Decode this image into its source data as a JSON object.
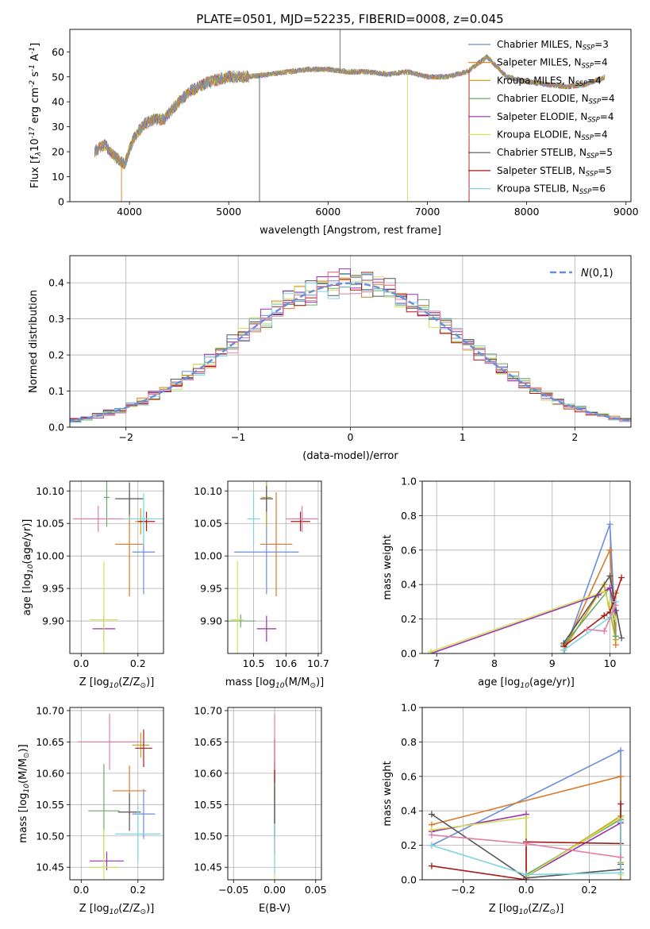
{
  "figure_title": "PLATE=0501, MJD=52235, FIBERID=0008, z=0.045",
  "colors": {
    "axis": "#000000",
    "grid": "#b0b0b0",
    "series": [
      "#6a8fd8",
      "#d97a2a",
      "#c9a31a",
      "#6aa96a",
      "#9b30b0",
      "#d2e35a",
      "#555555",
      "#aa1a1a",
      "#7fd4df",
      "#e27fa8"
    ],
    "normal_curve": "#6a8fd8"
  },
  "chart_data": [
    {
      "id": "spectrum",
      "type": "line",
      "title": "PLATE=0501, MJD=52235, FIBERID=0008, z=0.045",
      "xlabel": "wavelength [Angstrom, rest frame]",
      "ylabel": "Flux [f$_\\lambda$10$^{-17}$ erg cm$^{-2}$ s$^{-1}$ A$^{-1}$]",
      "xlim": [
        3400,
        9050
      ],
      "ylim": [
        0,
        69
      ],
      "xticks": [
        4000,
        5000,
        6000,
        7000,
        8000,
        9000
      ],
      "yticks": [
        0,
        10,
        20,
        30,
        40,
        50,
        60
      ],
      "grid": false,
      "legend_position": "upper-right",
      "continuum_x": [
        3650,
        3750,
        3850,
        3950,
        4050,
        4150,
        4250,
        4350,
        4450,
        4600,
        4800,
        5000,
        5200,
        5400,
        5600,
        5800,
        6000,
        6200,
        6400,
        6600,
        6800,
        7000,
        7200,
        7400,
        7500,
        7600,
        7700,
        7800,
        8000,
        8200,
        8400,
        8600,
        8800
      ],
      "continuum_y": [
        20,
        23,
        18,
        15,
        26,
        31,
        33,
        33,
        38,
        44,
        48,
        50,
        50,
        51,
        52,
        53,
        53,
        52,
        52,
        51,
        52,
        50,
        50,
        52,
        55,
        58,
        54,
        50,
        48,
        47,
        46,
        47,
        50
      ],
      "series": [
        {
          "label": "Chabrier MILES, N$_{SSP}$=3"
        },
        {
          "label": "Salpeter MILES, N$_{SSP}$=4"
        },
        {
          "label": "Kroupa MILES, N$_{SSP}$=4"
        },
        {
          "label": "Chabrier ELODIE, N$_{SSP}$=4"
        },
        {
          "label": "Salpeter ELODIE, N$_{SSP}$=4"
        },
        {
          "label": "Kroupa ELODIE, N$_{SSP}$=4"
        },
        {
          "label": "Chabrier STELIB, N$_{SSP}$=5"
        },
        {
          "label": "Salpeter STELIB, N$_{SSP}$=5"
        },
        {
          "label": "Kroupa STELIB, N$_{SSP}$=6"
        }
      ]
    },
    {
      "id": "residuals",
      "type": "histogram",
      "xlabel": "(data-model)/error",
      "ylabel": "Normed distribution",
      "xlim": [
        -2.5,
        2.5
      ],
      "ylim": [
        0,
        0.475
      ],
      "xticks": [
        -2,
        -1,
        0,
        1,
        2
      ],
      "yticks": [
        0.0,
        0.1,
        0.2,
        0.3,
        0.4
      ],
      "grid": true,
      "legend_position": "upper-right",
      "legend": [
        "$\\mathcal{N}(0,1)$"
      ],
      "bin_width": 0.1,
      "series_count": 9
    },
    {
      "id": "z-age",
      "type": "errorbar",
      "xlabel": "Z [log$_{10}$(Z/Z$_\\odot$)]",
      "ylabel": "age  [log$_{10}$(age/yr)]",
      "xlim": [
        -0.04,
        0.29
      ],
      "ylim": [
        9.85,
        10.115
      ],
      "xticks": [
        0.0,
        0.2
      ],
      "yticks": [
        9.9,
        9.95,
        10.0,
        10.05,
        10.1
      ],
      "grid": true,
      "points": [
        {
          "x": 0.22,
          "y": 10.006,
          "xerr": 0.04,
          "yerr": 0.065
        },
        {
          "x": 0.17,
          "y": 10.018,
          "xerr": 0.05,
          "yerr": 0.08
        },
        {
          "x": 0.21,
          "y": 10.053,
          "xerr": 0.02,
          "yerr": 0.02
        },
        {
          "x": 0.09,
          "y": 10.09,
          "xerr": 0.01,
          "yerr": 0.045
        },
        {
          "x": 0.08,
          "y": 9.888,
          "xerr": 0.04,
          "yerr": 0.02
        },
        {
          "x": 0.08,
          "y": 9.902,
          "xerr": 0.05,
          "yerr": 0.09
        },
        {
          "x": 0.17,
          "y": 10.088,
          "xerr": 0.05,
          "yerr": 0.025
        },
        {
          "x": 0.23,
          "y": 10.053,
          "xerr": 0.03,
          "yerr": 0.015
        },
        {
          "x": 0.22,
          "y": 10.057,
          "xerr": 0.07,
          "yerr": 0.04
        },
        {
          "x": 0.06,
          "y": 10.057,
          "xerr": 0.09,
          "yerr": 0.02
        }
      ]
    },
    {
      "id": "mass-age",
      "type": "errorbar",
      "xlabel": "mass [log$_{10}$(M/M$_\\odot$)]",
      "ylabel": "",
      "xlim": [
        10.42,
        10.71
      ],
      "ylim": [
        9.85,
        10.115
      ],
      "xticks": [
        10.5,
        10.6,
        10.7
      ],
      "yticks": [
        9.9,
        9.95,
        10.0,
        10.05,
        10.1
      ],
      "grid": true,
      "points": [
        {
          "x": 10.54,
          "y": 10.006,
          "xerr": 0.1,
          "yerr": 0.065
        },
        {
          "x": 10.57,
          "y": 10.018,
          "xerr": 0.05,
          "yerr": 0.08
        },
        {
          "x": 10.54,
          "y": 10.09,
          "xerr": 0.015,
          "yerr": 0.045
        },
        {
          "x": 10.46,
          "y": 9.9,
          "xerr": 0.045,
          "yerr": 0.01
        },
        {
          "x": 10.54,
          "y": 9.888,
          "xerr": 0.03,
          "yerr": 0.02
        },
        {
          "x": 10.45,
          "y": 9.902,
          "xerr": 0.02,
          "yerr": 0.09
        },
        {
          "x": 10.54,
          "y": 10.088,
          "xerr": 0.02,
          "yerr": 0.02
        },
        {
          "x": 10.645,
          "y": 10.053,
          "xerr": 0.03,
          "yerr": 0.015
        },
        {
          "x": 10.5,
          "y": 10.057,
          "xerr": 0.02,
          "yerr": 0.04
        },
        {
          "x": 10.65,
          "y": 10.057,
          "xerr": 0.05,
          "yerr": 0.02
        }
      ]
    },
    {
      "id": "age-weight",
      "type": "line",
      "xlabel": "age  [log$_{10}$(age/yr)]",
      "ylabel": "mass weight",
      "xlim": [
        6.75,
        10.35
      ],
      "ylim": [
        0,
        1.0
      ],
      "xticks": [
        7,
        8,
        9,
        10
      ],
      "yticks": [
        0.0,
        0.2,
        0.4,
        0.6,
        0.8,
        1.0
      ],
      "grid": true,
      "series": [
        {
          "x": [
            9.2,
            10.0,
            10.1,
            10.1
          ],
          "y": [
            0.0,
            0.75,
            0.1,
            0.3
          ]
        },
        {
          "x": [
            9.2,
            10.0,
            10.1,
            10.1
          ],
          "y": [
            0.02,
            0.6,
            0.05,
            0.35
          ]
        },
        {
          "x": [
            9.2,
            9.9,
            10.1
          ],
          "y": [
            0.02,
            0.4,
            0.08
          ]
        },
        {
          "x": [
            9.2,
            10.0,
            10.1
          ],
          "y": [
            0.05,
            0.38,
            0.1
          ]
        },
        {
          "x": [
            6.9,
            9.8,
            10.0,
            10.1
          ],
          "y": [
            0.0,
            0.34,
            0.38,
            0.25
          ]
        },
        {
          "x": [
            6.9,
            9.9,
            10.0,
            10.1
          ],
          "y": [
            0.01,
            0.36,
            0.28,
            0.2
          ]
        },
        {
          "x": [
            9.2,
            10.0,
            10.2
          ],
          "y": [
            0.06,
            0.45,
            0.09
          ]
        },
        {
          "x": [
            9.2,
            9.9,
            10.0,
            10.2
          ],
          "y": [
            0.04,
            0.22,
            0.24,
            0.44
          ]
        },
        {
          "x": [
            9.2,
            10.0,
            10.1
          ],
          "y": [
            0.02,
            0.21,
            0.3
          ]
        },
        {
          "x": [
            9.6,
            9.9,
            10.1
          ],
          "y": [
            0.14,
            0.13,
            0.28
          ]
        }
      ]
    },
    {
      "id": "z-mass",
      "type": "errorbar",
      "xlabel": "Z [log$_{10}$(Z/Z$_\\odot$)]",
      "ylabel": "mass [log$_{10}$(M/M$_\\odot$)]",
      "xlim": [
        -0.04,
        0.29
      ],
      "ylim": [
        10.43,
        10.705
      ],
      "xticks": [
        0.0,
        0.2
      ],
      "yticks": [
        10.45,
        10.5,
        10.55,
        10.6,
        10.65,
        10.7
      ],
      "grid": true,
      "points": [
        {
          "x": 0.22,
          "y": 10.535,
          "xerr": 0.04,
          "yerr": 0.04
        },
        {
          "x": 0.17,
          "y": 10.572,
          "xerr": 0.06,
          "yerr": 0.04
        },
        {
          "x": 0.21,
          "y": 10.645,
          "xerr": 0.03,
          "yerr": 0.02
        },
        {
          "x": 0.08,
          "y": 10.54,
          "xerr": 0.055,
          "yerr": 0.075
        },
        {
          "x": 0.09,
          "y": 10.46,
          "xerr": 0.06,
          "yerr": 0.015
        },
        {
          "x": 0.08,
          "y": 10.45,
          "xerr": 0.05,
          "yerr": 0.06
        },
        {
          "x": 0.17,
          "y": 10.538,
          "xerr": 0.04,
          "yerr": 0.03
        },
        {
          "x": 0.22,
          "y": 10.64,
          "xerr": 0.03,
          "yerr": 0.03
        },
        {
          "x": 0.2,
          "y": 10.503,
          "xerr": 0.08,
          "yerr": 0.045
        },
        {
          "x": 0.1,
          "y": 10.65,
          "xerr": 0.11,
          "yerr": 0.045
        }
      ]
    },
    {
      "id": "ebv-mass",
      "type": "errorbar",
      "xlabel": "E(B-V)",
      "ylabel": "",
      "xlim": [
        -0.057,
        0.057
      ],
      "ylim": [
        10.43,
        10.705
      ],
      "xticks": [
        -0.05,
        0.0,
        0.05
      ],
      "yticks": [
        10.45,
        10.5,
        10.55,
        10.6,
        10.65,
        10.7
      ],
      "grid": true,
      "points": [
        {
          "x": 0,
          "y": 10.535,
          "xerr": 0,
          "yerr": 0.04
        },
        {
          "x": 0,
          "y": 10.572,
          "xerr": 0,
          "yerr": 0.04
        },
        {
          "x": 0,
          "y": 10.61,
          "xerr": 0,
          "yerr": 0.045
        },
        {
          "x": 0,
          "y": 10.54,
          "xerr": 0,
          "yerr": 0.04
        },
        {
          "x": 0,
          "y": 10.5,
          "xerr": 0,
          "yerr": 0.03
        },
        {
          "x": 0,
          "y": 10.45,
          "xerr": 0,
          "yerr": 0.03
        },
        {
          "x": 0,
          "y": 10.57,
          "xerr": 0,
          "yerr": 0.05
        },
        {
          "x": 0,
          "y": 10.62,
          "xerr": 0,
          "yerr": 0.035
        },
        {
          "x": 0,
          "y": 10.48,
          "xerr": 0,
          "yerr": 0.04
        },
        {
          "x": 0,
          "y": 10.65,
          "xerr": 0,
          "yerr": 0.045
        }
      ]
    },
    {
      "id": "z-weight",
      "type": "line",
      "xlabel": "Z [log$_{10}$(Z/Z$_\\odot$)]",
      "ylabel": "mass weight",
      "xlim": [
        -0.33,
        0.33
      ],
      "ylim": [
        0,
        1.0
      ],
      "xticks": [
        -0.2,
        0.0,
        0.2
      ],
      "yticks": [
        0.0,
        0.2,
        0.4,
        0.6,
        0.8,
        1.0
      ],
      "grid": true,
      "series": [
        {
          "x": [
            -0.3,
            0.3,
            0.3
          ],
          "y": [
            0.2,
            0.75,
            0.04
          ]
        },
        {
          "x": [
            -0.3,
            0.3,
            0.3
          ],
          "y": [
            0.32,
            0.6,
            0.0
          ]
        },
        {
          "x": [
            0.0,
            0.3,
            0.3
          ],
          "y": [
            0.02,
            0.37,
            0.1
          ]
        },
        {
          "x": [
            0.0,
            0.3,
            0.3
          ],
          "y": [
            0.03,
            0.35,
            0.04
          ]
        },
        {
          "x": [
            -0.3,
            0.0,
            0.0,
            0.3,
            0.3
          ],
          "y": [
            0.28,
            0.38,
            0.02,
            0.33,
            0.06
          ]
        },
        {
          "x": [
            -0.3,
            0.0,
            0.0,
            0.3,
            0.3
          ],
          "y": [
            0.29,
            0.36,
            0.02,
            0.36,
            0.03
          ]
        },
        {
          "x": [
            -0.3,
            0.0,
            0.3,
            0.3
          ],
          "y": [
            0.38,
            0.01,
            0.06,
            0.09
          ]
        },
        {
          "x": [
            -0.3,
            0.0,
            0.0,
            0.3,
            0.3
          ],
          "y": [
            0.08,
            0.0,
            0.22,
            0.21,
            0.44
          ]
        },
        {
          "x": [
            -0.3,
            0.0,
            0.3,
            0.3
          ],
          "y": [
            0.2,
            0.03,
            0.04,
            0.34
          ]
        },
        {
          "x": [
            -0.3,
            0.0,
            0.3
          ],
          "y": [
            0.26,
            0.21,
            0.13
          ]
        }
      ]
    }
  ]
}
